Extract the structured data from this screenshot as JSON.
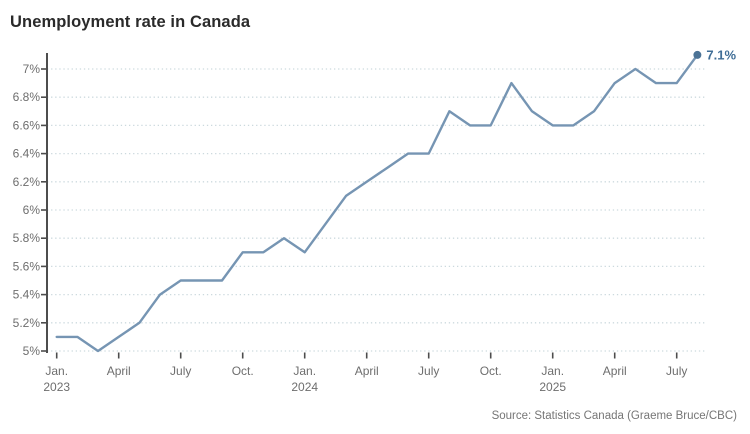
{
  "header": {
    "title": "Unemployment rate in Canada"
  },
  "footer": {
    "source": "Source: Statistics Canada (Graeme Bruce/CBC)"
  },
  "colors": {
    "line": "#7695b3",
    "marker": "#4c7396",
    "annotation": "#3f6d96",
    "grid": "#ccd9de",
    "axis": "#4d4d4d",
    "tick_label": "#6e6e6e",
    "title": "#2a2a2a",
    "source": "#767676",
    "background": "#ffffff"
  },
  "chart_data": {
    "type": "line",
    "title": "Unemployment rate in Canada",
    "xlabel": "",
    "ylabel": "",
    "ylim": [
      5.0,
      7.1
    ],
    "grid": "horizontal-dotted",
    "legend": "none",
    "end_label": "7.1%",
    "x": [
      "Jan 2023",
      "Feb 2023",
      "Mar 2023",
      "Apr 2023",
      "May 2023",
      "Jun 2023",
      "Jul 2023",
      "Aug 2023",
      "Sep 2023",
      "Oct 2023",
      "Nov 2023",
      "Dec 2023",
      "Jan 2024",
      "Feb 2024",
      "Mar 2024",
      "Apr 2024",
      "May 2024",
      "Jun 2024",
      "Jul 2024",
      "Aug 2024",
      "Sep 2024",
      "Oct 2024",
      "Nov 2024",
      "Dec 2024",
      "Jan 2025",
      "Feb 2025",
      "Mar 2025",
      "Apr 2025",
      "May 2025",
      "Jun 2025",
      "Jul 2025",
      "Aug 2025"
    ],
    "values": [
      5.1,
      5.1,
      5.0,
      5.1,
      5.2,
      5.4,
      5.5,
      5.5,
      5.5,
      5.7,
      5.7,
      5.8,
      5.7,
      5.9,
      6.1,
      6.2,
      6.3,
      6.4,
      6.4,
      6.7,
      6.6,
      6.6,
      6.9,
      6.7,
      6.6,
      6.6,
      6.7,
      6.9,
      7.0,
      6.9,
      6.9,
      7.1
    ],
    "yticks": {
      "values": [
        7.0,
        6.8,
        6.6,
        6.4,
        6.2,
        6.0,
        5.8,
        5.6,
        5.4,
        5.2,
        5.0
      ],
      "labels": [
        "7%",
        "6.8%",
        "6.6%",
        "6.4%",
        "6.2%",
        "6%",
        "5.8%",
        "5.6%",
        "5.4%",
        "5.2%",
        "5%"
      ]
    },
    "xticks": [
      {
        "index": 0,
        "lines": [
          "Jan.",
          "2023"
        ]
      },
      {
        "index": 3,
        "lines": [
          "April"
        ]
      },
      {
        "index": 6,
        "lines": [
          "July"
        ]
      },
      {
        "index": 9,
        "lines": [
          "Oct."
        ]
      },
      {
        "index": 12,
        "lines": [
          "Jan.",
          "2024"
        ]
      },
      {
        "index": 15,
        "lines": [
          "April"
        ]
      },
      {
        "index": 18,
        "lines": [
          "July"
        ]
      },
      {
        "index": 21,
        "lines": [
          "Oct."
        ]
      },
      {
        "index": 24,
        "lines": [
          "Jan.",
          "2025"
        ]
      },
      {
        "index": 27,
        "lines": [
          "April"
        ]
      },
      {
        "index": 30,
        "lines": [
          "July"
        ]
      }
    ]
  }
}
